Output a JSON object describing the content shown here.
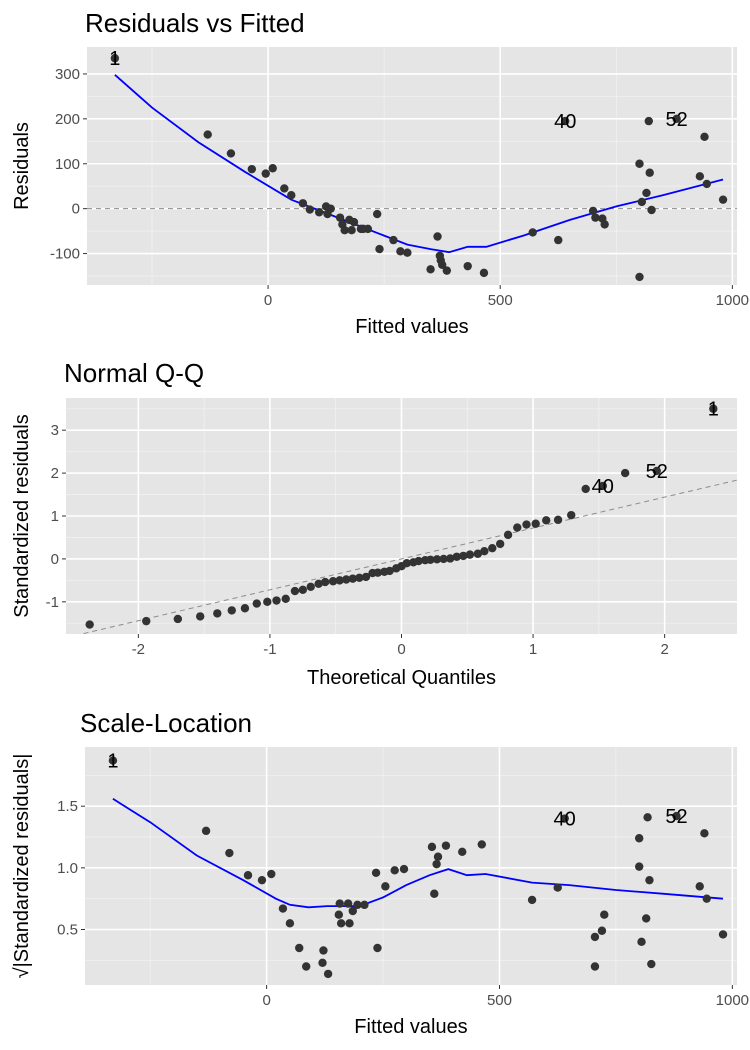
{
  "colors": {
    "panel": "#e5e5e5",
    "grid_major": "#ffffff",
    "grid_minor": "#f1f1f1",
    "point": "#333333",
    "smooth": "#0000ff",
    "reference": "#8c8c8c",
    "tick_text": "#4d4d4d",
    "text": "#000000"
  },
  "chart_data": [
    {
      "type": "scatter",
      "title": "Residuals vs Fitted",
      "xlabel": "Fitted values",
      "ylabel": "Residuals",
      "xlim": [
        -390,
        1010
      ],
      "ylim": [
        -170,
        360
      ],
      "xticks": [
        0,
        500,
        1000
      ],
      "xtick_labels": [
        "0",
        "500",
        "1000"
      ],
      "xminor": [
        -250,
        250,
        750
      ],
      "yticks": [
        -100,
        0,
        100,
        200,
        300
      ],
      "ytick_labels": [
        "-100",
        "0",
        "100",
        "200",
        "300"
      ],
      "yminor": [
        -150,
        -50,
        50,
        150,
        250
      ],
      "grid": true,
      "reference_line": {
        "type": "hline",
        "y": 0,
        "style": "dashed"
      },
      "points": [
        [
          -330,
          335
        ],
        [
          -130,
          165
        ],
        [
          -80,
          123
        ],
        [
          -35,
          88
        ],
        [
          -5,
          78
        ],
        [
          10,
          90
        ],
        [
          35,
          45
        ],
        [
          50,
          30
        ],
        [
          75,
          12
        ],
        [
          90,
          -2
        ],
        [
          110,
          -8
        ],
        [
          125,
          5
        ],
        [
          128,
          -12
        ],
        [
          135,
          0
        ],
        [
          155,
          -20
        ],
        [
          160,
          -35
        ],
        [
          165,
          -48
        ],
        [
          175,
          -25
        ],
        [
          180,
          -48
        ],
        [
          185,
          -30
        ],
        [
          200,
          -45
        ],
        [
          205,
          -45
        ],
        [
          215,
          -45
        ],
        [
          235,
          -12
        ],
        [
          240,
          -90
        ],
        [
          270,
          -70
        ],
        [
          285,
          -95
        ],
        [
          300,
          -98
        ],
        [
          350,
          -135
        ],
        [
          365,
          -62
        ],
        [
          370,
          -105
        ],
        [
          372,
          -115
        ],
        [
          375,
          -125
        ],
        [
          385,
          -138
        ],
        [
          430,
          -128
        ],
        [
          465,
          -143
        ],
        [
          570,
          -53
        ],
        [
          625,
          -70
        ],
        [
          640,
          195
        ],
        [
          700,
          -5
        ],
        [
          705,
          -20
        ],
        [
          720,
          -22
        ],
        [
          725,
          -35
        ],
        [
          800,
          100
        ],
        [
          800,
          -152
        ],
        [
          805,
          15
        ],
        [
          815,
          35
        ],
        [
          820,
          195
        ],
        [
          822,
          80
        ],
        [
          826,
          -3
        ],
        [
          880,
          200
        ],
        [
          930,
          72
        ],
        [
          940,
          160
        ],
        [
          945,
          55
        ],
        [
          980,
          20
        ]
      ],
      "smooth": [
        [
          -330,
          298
        ],
        [
          -250,
          225
        ],
        [
          -150,
          148
        ],
        [
          -50,
          82
        ],
        [
          50,
          20
        ],
        [
          130,
          -12
        ],
        [
          200,
          -40
        ],
        [
          250,
          -60
        ],
        [
          300,
          -80
        ],
        [
          350,
          -90
        ],
        [
          390,
          -97
        ],
        [
          430,
          -85
        ],
        [
          470,
          -85
        ],
        [
          550,
          -60
        ],
        [
          650,
          -25
        ],
        [
          750,
          5
        ],
        [
          850,
          30
        ],
        [
          980,
          65
        ]
      ],
      "point_labels": [
        {
          "text": "1",
          "x": -330,
          "y": 335
        },
        {
          "text": "40",
          "x": 640,
          "y": 195
        },
        {
          "text": "52",
          "x": 880,
          "y": 200
        }
      ]
    },
    {
      "type": "scatter",
      "title": "Normal Q-Q",
      "xlabel": "Theoretical Quantiles",
      "ylabel": "Standardized residuals",
      "xlim": [
        -2.55,
        2.55
      ],
      "ylim": [
        -1.75,
        3.75
      ],
      "xticks": [
        -2,
        -1,
        0,
        1,
        2
      ],
      "xtick_labels": [
        "-2",
        "-1",
        "0",
        "1",
        "2"
      ],
      "xminor": [
        -1.5,
        -0.5,
        0.5,
        1.5
      ],
      "yticks": [
        -1,
        0,
        1,
        2,
        3
      ],
      "ytick_labels": [
        "-1",
        "0",
        "1",
        "2",
        "3"
      ],
      "yminor": [
        -1.5,
        -0.5,
        0.5,
        1.5,
        2.5,
        3.5
      ],
      "grid": true,
      "reference_line": {
        "type": "abline",
        "intercept": 0,
        "slope": 0.72,
        "style": "dashed"
      },
      "points": [
        [
          -2.37,
          -1.53
        ],
        [
          -1.94,
          -1.45
        ],
        [
          -1.7,
          -1.4
        ],
        [
          -1.53,
          -1.34
        ],
        [
          -1.4,
          -1.27
        ],
        [
          -1.29,
          -1.2
        ],
        [
          -1.19,
          -1.15
        ],
        [
          -1.1,
          -1.04
        ],
        [
          -1.02,
          -1.0
        ],
        [
          -0.95,
          -0.97
        ],
        [
          -0.88,
          -0.93
        ],
        [
          -0.81,
          -0.75
        ],
        [
          -0.75,
          -0.72
        ],
        [
          -0.69,
          -0.65
        ],
        [
          -0.63,
          -0.58
        ],
        [
          -0.58,
          -0.54
        ],
        [
          -0.52,
          -0.52
        ],
        [
          -0.47,
          -0.5
        ],
        [
          -0.42,
          -0.48
        ],
        [
          -0.37,
          -0.46
        ],
        [
          -0.32,
          -0.44
        ],
        [
          -0.27,
          -0.42
        ],
        [
          -0.22,
          -0.33
        ],
        [
          -0.18,
          -0.32
        ],
        [
          -0.13,
          -0.3
        ],
        [
          -0.09,
          -0.28
        ],
        [
          -0.04,
          -0.22
        ],
        [
          0.0,
          -0.17
        ],
        [
          0.04,
          -0.1
        ],
        [
          0.09,
          -0.08
        ],
        [
          0.13,
          -0.05
        ],
        [
          0.18,
          -0.03
        ],
        [
          0.22,
          -0.02
        ],
        [
          0.27,
          -0.01
        ],
        [
          0.32,
          0.0
        ],
        [
          0.37,
          0.01
        ],
        [
          0.42,
          0.05
        ],
        [
          0.47,
          0.07
        ],
        [
          0.52,
          0.1
        ],
        [
          0.58,
          0.12
        ],
        [
          0.63,
          0.18
        ],
        [
          0.69,
          0.25
        ],
        [
          0.75,
          0.35
        ],
        [
          0.81,
          0.56
        ],
        [
          0.88,
          0.73
        ],
        [
          0.95,
          0.8
        ],
        [
          1.02,
          0.82
        ],
        [
          1.1,
          0.9
        ],
        [
          1.19,
          0.91
        ],
        [
          1.29,
          1.02
        ],
        [
          1.4,
          1.63
        ],
        [
          1.53,
          1.7
        ],
        [
          1.7,
          2.0
        ],
        [
          1.94,
          2.05
        ],
        [
          2.37,
          3.5
        ]
      ],
      "point_labels": [
        {
          "text": "1",
          "x": 2.37,
          "y": 3.5
        },
        {
          "text": "40",
          "x": 1.53,
          "y": 1.7
        },
        {
          "text": "52",
          "x": 1.94,
          "y": 2.05
        }
      ]
    },
    {
      "type": "scatter",
      "title": "Scale-Location",
      "xlabel": "Fitted values",
      "ylabel": "√|Standardized residuals|",
      "xlim": [
        -390,
        1010
      ],
      "ylim": [
        0.05,
        1.98
      ],
      "xticks": [
        0,
        500,
        1000
      ],
      "xtick_labels": [
        "0",
        "500",
        "1000"
      ],
      "xminor": [
        -250,
        250,
        750
      ],
      "yticks": [
        0.5,
        1.0,
        1.5
      ],
      "ytick_labels": [
        "0.5",
        "1.0",
        "1.5"
      ],
      "yminor": [
        0.25,
        0.75,
        1.25,
        1.75
      ],
      "grid": true,
      "points": [
        [
          -330,
          1.87
        ],
        [
          -130,
          1.3
        ],
        [
          -80,
          1.12
        ],
        [
          -40,
          0.94
        ],
        [
          -10,
          0.9
        ],
        [
          10,
          0.95
        ],
        [
          35,
          0.67
        ],
        [
          50,
          0.55
        ],
        [
          70,
          0.35
        ],
        [
          85,
          0.2
        ],
        [
          120,
          0.23
        ],
        [
          122,
          0.33
        ],
        [
          132,
          0.14
        ],
        [
          155,
          0.62
        ],
        [
          157,
          0.71
        ],
        [
          160,
          0.55
        ],
        [
          175,
          0.71
        ],
        [
          178,
          0.55
        ],
        [
          185,
          0.65
        ],
        [
          195,
          0.7
        ],
        [
          210,
          0.7
        ],
        [
          235,
          0.96
        ],
        [
          238,
          0.35
        ],
        [
          255,
          0.85
        ],
        [
          275,
          0.98
        ],
        [
          295,
          0.99
        ],
        [
          355,
          1.17
        ],
        [
          360,
          0.79
        ],
        [
          365,
          1.03
        ],
        [
          368,
          1.09
        ],
        [
          385,
          1.18
        ],
        [
          420,
          1.13
        ],
        [
          462,
          1.19
        ],
        [
          570,
          0.74
        ],
        [
          625,
          0.84
        ],
        [
          640,
          1.4
        ],
        [
          705,
          0.2
        ],
        [
          705,
          0.44
        ],
        [
          720,
          0.49
        ],
        [
          725,
          0.62
        ],
        [
          800,
          1.24
        ],
        [
          800,
          1.01
        ],
        [
          805,
          0.4
        ],
        [
          815,
          0.59
        ],
        [
          818,
          1.41
        ],
        [
          822,
          0.9
        ],
        [
          826,
          0.22
        ],
        [
          880,
          1.42
        ],
        [
          930,
          0.85
        ],
        [
          940,
          1.28
        ],
        [
          945,
          0.75
        ],
        [
          980,
          0.46
        ]
      ],
      "smooth": [
        [
          -330,
          1.56
        ],
        [
          -250,
          1.37
        ],
        [
          -150,
          1.1
        ],
        [
          -50,
          0.9
        ],
        [
          20,
          0.75
        ],
        [
          50,
          0.7
        ],
        [
          90,
          0.68
        ],
        [
          130,
          0.69
        ],
        [
          200,
          0.69
        ],
        [
          250,
          0.76
        ],
        [
          300,
          0.86
        ],
        [
          350,
          0.94
        ],
        [
          390,
          0.99
        ],
        [
          430,
          0.94
        ],
        [
          470,
          0.95
        ],
        [
          570,
          0.88
        ],
        [
          650,
          0.86
        ],
        [
          750,
          0.82
        ],
        [
          850,
          0.79
        ],
        [
          980,
          0.75
        ]
      ],
      "point_labels": [
        {
          "text": "1",
          "x": -330,
          "y": 1.87
        },
        {
          "text": "40",
          "x": 640,
          "y": 1.4
        },
        {
          "text": "52",
          "x": 880,
          "y": 1.42
        }
      ]
    }
  ]
}
